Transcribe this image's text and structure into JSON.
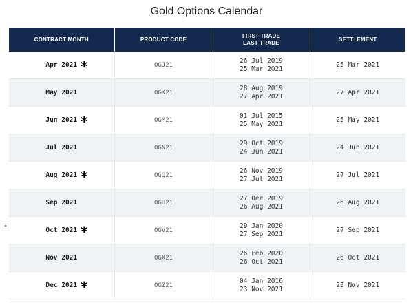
{
  "title": "Gold Options Calendar",
  "headers": {
    "contract_month": "CONTRACT MONTH",
    "product_code": "PRODUCT CODE",
    "first_trade": "FIRST TRADE",
    "last_trade": "LAST TRADE",
    "settlement": "SETTLEMENT"
  },
  "rows": [
    {
      "month": "Apr 2021",
      "star": "*",
      "code": "OGJ21",
      "first_trade": "26 Jul 2019",
      "last_trade": "25 Mar 2021",
      "settlement": "25 Mar 2021"
    },
    {
      "month": "May 2021",
      "star": "",
      "code": "OGK21",
      "first_trade": "28 Aug 2019",
      "last_trade": "27 Apr 2021",
      "settlement": "27 Apr 2021"
    },
    {
      "month": "Jun 2021",
      "star": "*",
      "code": "OGM21",
      "first_trade": "01 Jul 2015",
      "last_trade": "25 May 2021",
      "settlement": "25 May 2021"
    },
    {
      "month": "Jul 2021",
      "star": "",
      "code": "OGN21",
      "first_trade": "29 Oct 2019",
      "last_trade": "24 Jun 2021",
      "settlement": "24 Jun 2021"
    },
    {
      "month": "Aug 2021",
      "star": "*",
      "code": "OGQ21",
      "first_trade": "26 Nov 2019",
      "last_trade": "27 Jul 2021",
      "settlement": "27 Jul 2021"
    },
    {
      "month": "Sep 2021",
      "star": "",
      "code": "OGU21",
      "first_trade": "27 Dec 2019",
      "last_trade": "26 Aug 2021",
      "settlement": "26 Aug 2021"
    },
    {
      "month": "Oct 2021",
      "star": "*",
      "code": "OGV21",
      "first_trade": "29 Jan 2020",
      "last_trade": "27 Sep 2021",
      "settlement": "27 Sep 2021"
    },
    {
      "month": "Nov 2021",
      "star": "",
      "code": "OGX21",
      "first_trade": "26 Feb 2020",
      "last_trade": "26 Oct 2021",
      "settlement": "26 Oct 2021"
    },
    {
      "month": "Dec 2021",
      "star": "*",
      "code": "OGZ21",
      "first_trade": "04 Jan 2016",
      "last_trade": "23 Nov 2021",
      "settlement": "23 Nov 2021"
    }
  ],
  "colors": {
    "header_bg": "#132a4e",
    "row_alt_bg": "#eef3f6",
    "border": "#e5e7ea"
  }
}
